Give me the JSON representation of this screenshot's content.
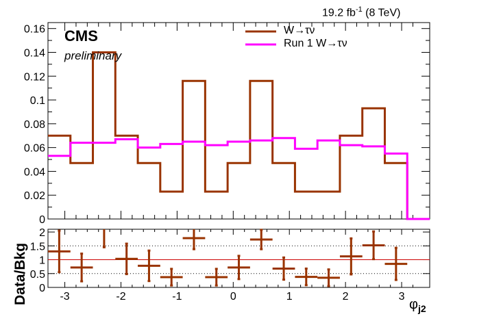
{
  "chart_data": [
    {
      "type": "histogram",
      "annotations": {
        "lumi_main": "19.2 fb",
        "lumi_exp": "-1",
        "lumi_energy": " (8 TeV)",
        "experiment": "CMS",
        "status": "preliminary"
      },
      "ylim": [
        0,
        0.165
      ],
      "y_ticks": [
        "0",
        "0.02",
        "0.04",
        "0.06",
        "0.08",
        "0.1",
        "0.12",
        "0.14",
        "0.16"
      ],
      "legend_position": "top-right",
      "bin_edges": [
        -3.3,
        -2.9,
        -2.5,
        -2.1,
        -1.7,
        -1.3,
        -0.9,
        -0.5,
        -0.1,
        0.3,
        0.7,
        1.1,
        1.5,
        1.9,
        2.3,
        2.7,
        3.1,
        3.5
      ],
      "series": [
        {
          "name": "W→τν",
          "color": "#993300",
          "values": [
            0.07,
            0.047,
            0.14,
            0.07,
            0.047,
            0.023,
            0.116,
            0.023,
            0.047,
            0.116,
            0.047,
            0.023,
            0.023,
            0.07,
            0.093,
            0.047,
            0.0
          ]
        },
        {
          "name": "Run 1 W→τν",
          "color": "#ff00ff",
          "values": [
            0.053,
            0.064,
            0.064,
            0.067,
            0.06,
            0.063,
            0.065,
            0.062,
            0.065,
            0.066,
            0.068,
            0.059,
            0.066,
            0.062,
            0.061,
            0.055,
            0.0
          ]
        }
      ]
    },
    {
      "type": "scatter",
      "ylabel": "Data/Bkg",
      "xlabel": "φ",
      "xlabel_sub": "j2",
      "xlim": [
        -3.3,
        3.5
      ],
      "ylim": [
        0,
        2.1
      ],
      "x_ticks": [
        "-3",
        "-2",
        "-1",
        "0",
        "1",
        "2",
        "3"
      ],
      "y_ticks": [
        "0",
        "0.5",
        "1",
        "1.5",
        "2"
      ],
      "reference_line": 1.0,
      "color": "#993300",
      "x": [
        -3.1,
        -2.7,
        -2.3,
        -1.9,
        -1.5,
        -1.1,
        -0.7,
        -0.3,
        0.1,
        0.5,
        0.9,
        1.3,
        1.7,
        2.1,
        2.5,
        2.9
      ],
      "y": [
        1.3,
        0.72,
        2.2,
        1.03,
        0.78,
        0.37,
        1.78,
        0.37,
        0.72,
        1.73,
        0.68,
        0.38,
        0.35,
        1.12,
        1.52,
        0.85
      ],
      "y_err": [
        0.75,
        0.5,
        0.75,
        0.55,
        0.55,
        0.3,
        0.4,
        0.3,
        0.42,
        0.35,
        0.4,
        0.3,
        0.3,
        0.65,
        0.5,
        0.58
      ]
    }
  ]
}
